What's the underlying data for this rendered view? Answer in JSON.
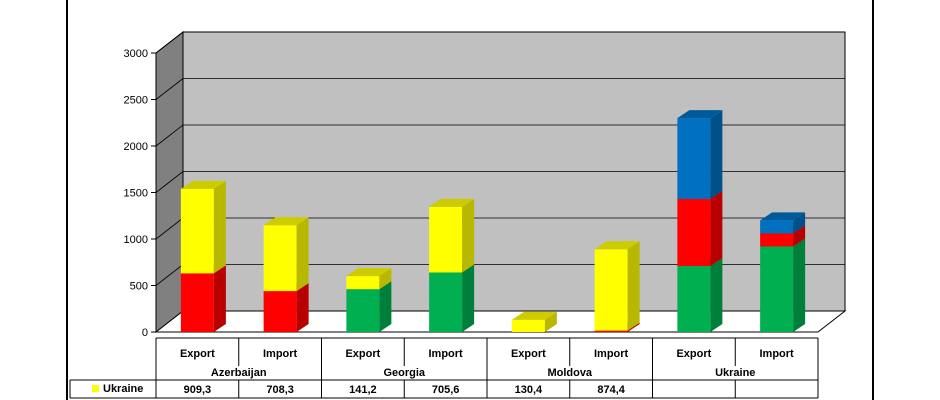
{
  "chart_data": {
    "type": "bar",
    "stacked": true,
    "three_d": true,
    "groups": [
      "Azerbaijan",
      "Georgia",
      "Moldova",
      "Ukraine"
    ],
    "subcategories": [
      "Export",
      "Import"
    ],
    "ylim": [
      0,
      3000
    ],
    "yticks": [
      0,
      500,
      1000,
      1500,
      2000,
      2500,
      3000
    ],
    "grid": true,
    "series": [
      {
        "color": "#00B050",
        "values": [
          0,
          0,
          460,
          640,
          0,
          0,
          710,
          920
        ]
      },
      {
        "color": "#FF0000",
        "values": [
          630,
          440,
          0,
          0,
          0,
          15,
          720,
          140
        ]
      },
      {
        "color": "#0070C0",
        "values": [
          0,
          0,
          0,
          0,
          0,
          0,
          870,
          140
        ]
      },
      {
        "name": "Ukraine",
        "color": "#FFFF00",
        "values": [
          909.3,
          708.3,
          141.2,
          705.6,
          130.4,
          874.4,
          0,
          0
        ]
      }
    ],
    "table": {
      "legend_label": "Ukraine",
      "cells": [
        "909,3",
        "708,3",
        "141,2",
        "705,6",
        "130,4",
        "874,4",
        "",
        ""
      ]
    }
  }
}
